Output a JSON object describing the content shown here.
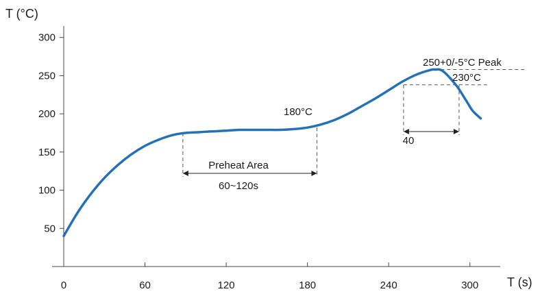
{
  "chart_data": {
    "type": "line",
    "xlabel": "T (s)",
    "ylabel": "T (°C)",
    "xlim": [
      0,
      330
    ],
    "ylim": [
      0,
      315
    ],
    "x_ticks": [
      0,
      60,
      120,
      180,
      240,
      300
    ],
    "y_ticks": [
      50,
      100,
      150,
      200,
      250,
      300
    ],
    "grid": false,
    "series_color": "#2471b5",
    "series": [
      {
        "x": [
          0,
          10,
          20,
          30,
          40,
          50,
          60,
          70,
          80,
          90,
          100,
          110,
          120,
          130,
          140,
          150,
          160,
          170,
          180,
          190,
          200,
          210,
          220,
          230,
          240,
          250,
          260,
          270,
          274,
          280,
          290,
          297,
          302,
          308
        ],
        "y": [
          40,
          70,
          95,
          116,
          133,
          147,
          158,
          166,
          172,
          175,
          176,
          177,
          178,
          179,
          179,
          179,
          179,
          180,
          182,
          186,
          192,
          200,
          210,
          220,
          231,
          242,
          251,
          257,
          258,
          256,
          237,
          218,
          204,
          194
        ]
      }
    ],
    "annotations": {
      "peak_label": "250+0/-5°C Peak",
      "level_230_label": "230°C",
      "level_180_label": "180°C",
      "preheat_label": "Preheat Area",
      "preheat_duration_label": "60~120s",
      "reflow_duration_label": "40",
      "peak_level": 258,
      "level_230": 238,
      "preheat_start": 88,
      "preheat_end": 187,
      "reflow_start": 251,
      "reflow_end": 292
    }
  }
}
